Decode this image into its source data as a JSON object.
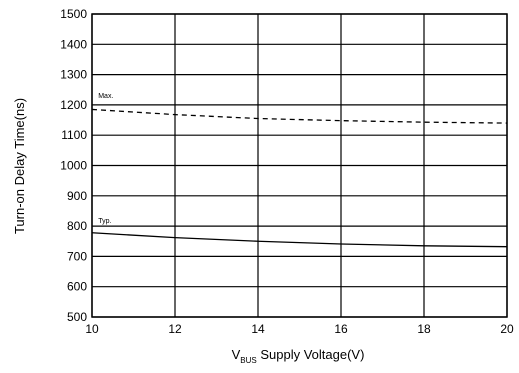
{
  "chart_data": {
    "type": "line",
    "title": "",
    "xlabel_main": "V",
    "xlabel_sub": "BUS",
    "xlabel_rest": " Supply Voltage(V)",
    "ylabel": "Turn-on Delay Time(ns)",
    "xlim": [
      10,
      20
    ],
    "ylim": [
      500,
      1500
    ],
    "x_ticks": [
      "10",
      "12",
      "14",
      "16",
      "18",
      "20"
    ],
    "y_ticks": [
      "500",
      "600",
      "700",
      "800",
      "900",
      "1000",
      "1100",
      "1200",
      "1300",
      "1400",
      "1500"
    ],
    "grid": true,
    "series": [
      {
        "name": "Max.",
        "style": "dashed",
        "x": [
          10,
          12,
          14,
          16,
          18,
          20
        ],
        "y": [
          1185,
          1168,
          1155,
          1148,
          1143,
          1140
        ]
      },
      {
        "name": "Typ.",
        "style": "solid",
        "x": [
          10,
          12,
          14,
          16,
          18,
          20
        ],
        "y": [
          778,
          762,
          750,
          741,
          735,
          732
        ]
      }
    ],
    "annotations": [
      {
        "text": "Max.",
        "x": 10.15,
        "y": 1222
      },
      {
        "text": "Typ.",
        "x": 10.15,
        "y": 810
      }
    ]
  }
}
